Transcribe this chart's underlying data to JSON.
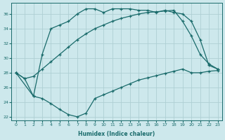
{
  "xlabel": "Humidex (Indice chaleur)",
  "bg_color": "#cde8ec",
  "line_color": "#1a6b6b",
  "grid_color": "#aecfd4",
  "xlim": [
    -0.5,
    23.5
  ],
  "ylim": [
    21.5,
    37.5
  ],
  "xticks": [
    0,
    1,
    2,
    3,
    4,
    5,
    6,
    7,
    8,
    9,
    10,
    11,
    12,
    13,
    14,
    15,
    16,
    17,
    18,
    19,
    20,
    21,
    22,
    23
  ],
  "yticks": [
    22,
    24,
    26,
    28,
    30,
    32,
    34,
    36
  ],
  "line1_x": [
    0,
    1,
    2,
    3,
    4,
    5,
    6,
    7,
    8,
    9,
    10,
    11,
    12,
    13,
    14,
    15,
    16,
    17,
    18,
    19,
    20,
    21,
    22,
    23
  ],
  "line1_y": [
    28.0,
    27.2,
    24.8,
    24.5,
    23.8,
    23.0,
    22.3,
    22.0,
    22.5,
    24.5,
    25.0,
    25.5,
    26.0,
    26.5,
    27.0,
    27.3,
    27.6,
    27.9,
    28.2,
    28.5,
    28.0,
    28.0,
    28.2,
    28.3
  ],
  "line2_x": [
    0,
    1,
    2,
    3,
    4,
    5,
    6,
    7,
    8,
    9,
    10,
    11,
    12,
    13,
    14,
    15,
    16,
    17,
    18,
    19,
    20,
    21,
    22,
    23
  ],
  "line2_y": [
    28.0,
    27.2,
    27.5,
    28.5,
    29.5,
    30.5,
    31.5,
    32.5,
    33.3,
    34.0,
    34.5,
    35.0,
    35.4,
    35.7,
    36.0,
    36.2,
    36.3,
    36.4,
    36.5,
    35.0,
    33.0,
    30.5,
    29.2,
    28.5
  ],
  "line3_x": [
    0,
    2,
    3,
    4,
    5,
    6,
    7,
    8,
    9,
    10,
    11,
    12,
    13,
    14,
    15,
    16,
    17,
    18,
    19,
    20,
    21,
    22,
    23
  ],
  "line3_y": [
    28.0,
    24.8,
    30.5,
    34.0,
    34.5,
    35.0,
    36.0,
    36.7,
    36.7,
    36.2,
    36.7,
    36.7,
    36.7,
    36.5,
    36.5,
    36.2,
    36.5,
    36.2,
    36.0,
    35.0,
    32.5,
    29.0,
    28.5
  ]
}
